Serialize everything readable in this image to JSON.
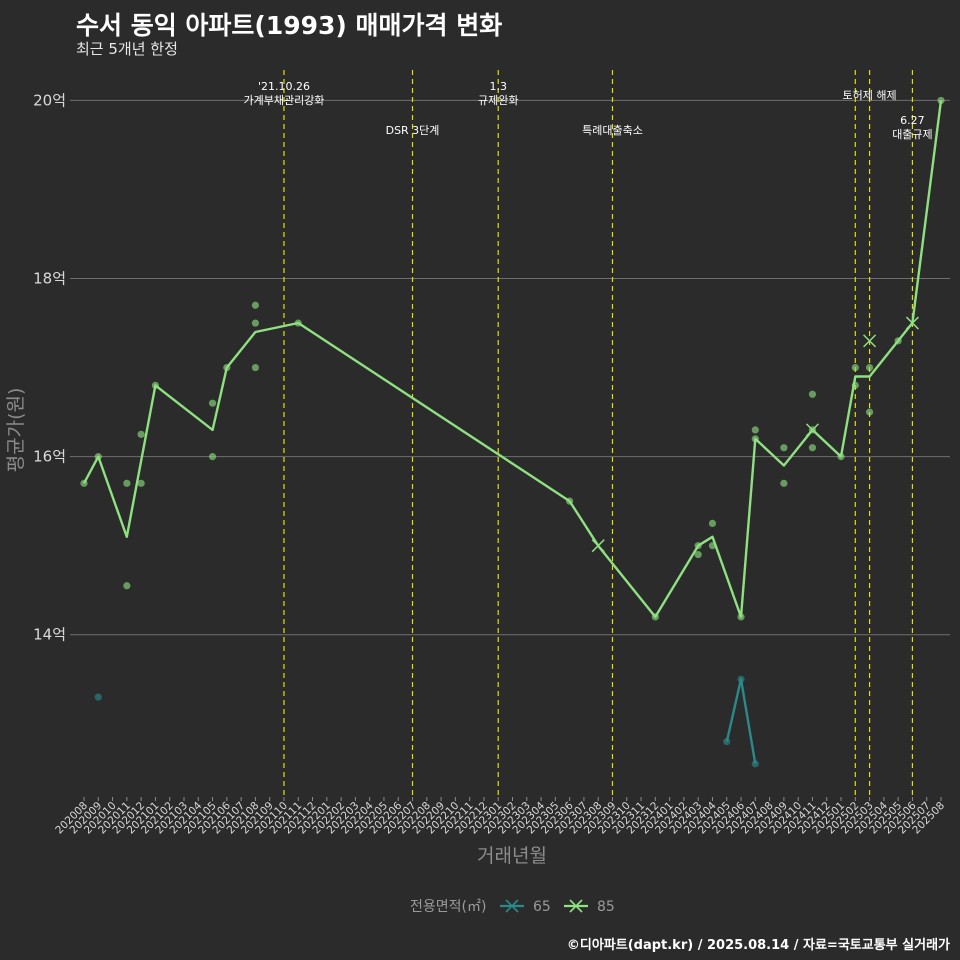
{
  "title": "수서 동익 아파트(1993) 매매가격 변화",
  "subtitle": "최근 5개년 한정",
  "caption": "©디아파트(dapt.kr) / 2025.08.14 / 자료=국토교통부 실거래가",
  "colors": {
    "s85": "#8ee080",
    "s65": "#2a8a8a",
    "event": "#e0e000",
    "grid": "#6e6e6e",
    "bg": "#2b2b2b"
  },
  "chart_data": {
    "type": "line",
    "title": "수서 동익 아파트(1993) 매매가격 변화",
    "subtitle": "최근 5개년 한정",
    "xlabel": "거래년월",
    "ylabel": "평균가(원)",
    "ylim": [
      12.2,
      20.6
    ],
    "yticks": [
      14,
      16,
      18,
      20
    ],
    "ytick_labels": [
      "14억",
      "16억",
      "18억",
      "20억"
    ],
    "x_categories": [
      "202008",
      "202009",
      "202010",
      "202011",
      "202012",
      "202101",
      "202102",
      "202103",
      "202104",
      "202105",
      "202106",
      "202107",
      "202108",
      "202109",
      "202110",
      "202111",
      "202112",
      "202201",
      "202202",
      "202203",
      "202204",
      "202205",
      "202206",
      "202207",
      "202208",
      "202209",
      "202210",
      "202211",
      "202212",
      "202301",
      "202302",
      "202303",
      "202304",
      "202305",
      "202306",
      "202307",
      "202308",
      "202309",
      "202310",
      "202311",
      "202312",
      "202401",
      "202402",
      "202403",
      "202404",
      "202405",
      "202406",
      "202407",
      "202408",
      "202409",
      "202410",
      "202411",
      "202412",
      "202501",
      "202502",
      "202503",
      "202504",
      "202505",
      "202506",
      "202507",
      "202508"
    ],
    "legend_title": "전용면적(㎡)",
    "legend_position": "bottom",
    "series": [
      {
        "name": "85",
        "line": [
          [
            "202008",
            15.7
          ],
          [
            "202009",
            16.0
          ],
          [
            "202011",
            15.1
          ],
          [
            "202101",
            16.8
          ],
          [
            "202105",
            16.3
          ],
          [
            "202106",
            17.0
          ],
          [
            "202108",
            17.4
          ],
          [
            "202111",
            17.5
          ],
          [
            "202306",
            15.5
          ],
          [
            "202308",
            15.0
          ],
          [
            "202312",
            14.2
          ],
          [
            "202403",
            15.0
          ],
          [
            "202404",
            15.1
          ],
          [
            "202406",
            14.2
          ],
          [
            "202407",
            16.2
          ],
          [
            "202409",
            15.9
          ],
          [
            "202411",
            16.3
          ],
          [
            "202501",
            16.0
          ],
          [
            "202502",
            16.9
          ],
          [
            "202503",
            16.9
          ],
          [
            "202505",
            17.3
          ],
          [
            "202506",
            17.5
          ],
          [
            "202508",
            20.0
          ]
        ],
        "points": [
          [
            "202008",
            15.7
          ],
          [
            "202009",
            16.0
          ],
          [
            "202011",
            15.7
          ],
          [
            "202011",
            14.55
          ],
          [
            "202012",
            16.25
          ],
          [
            "202012",
            15.7
          ],
          [
            "202101",
            16.8
          ],
          [
            "202105",
            16.6
          ],
          [
            "202105",
            16.0
          ],
          [
            "202106",
            17.0
          ],
          [
            "202108",
            17.7
          ],
          [
            "202108",
            17.5
          ],
          [
            "202108",
            17.0
          ],
          [
            "202111",
            17.5
          ],
          [
            "202306",
            15.5
          ],
          [
            "202312",
            14.2
          ],
          [
            "202403",
            15.0
          ],
          [
            "202403",
            14.9
          ],
          [
            "202404",
            15.25
          ],
          [
            "202404",
            15.0
          ],
          [
            "202406",
            14.2
          ],
          [
            "202407",
            16.3
          ],
          [
            "202407",
            16.2
          ],
          [
            "202409",
            16.1
          ],
          [
            "202409",
            15.7
          ],
          [
            "202411",
            16.7
          ],
          [
            "202411",
            16.3
          ],
          [
            "202411",
            16.1
          ],
          [
            "202501",
            16.0
          ],
          [
            "202502",
            17.0
          ],
          [
            "202502",
            16.8
          ],
          [
            "202503",
            17.0
          ],
          [
            "202503",
            16.5
          ],
          [
            "202505",
            17.3
          ],
          [
            "202508",
            20.0
          ]
        ],
        "cross_marks": [
          [
            "202308",
            15.0
          ],
          [
            "202411",
            16.3
          ],
          [
            "202503",
            17.3
          ],
          [
            "202506",
            17.5
          ]
        ]
      },
      {
        "name": "65",
        "line": [
          [
            "202405",
            12.8
          ],
          [
            "202406",
            13.5
          ],
          [
            "202407",
            12.55
          ]
        ],
        "points": [
          [
            "202009",
            13.3
          ],
          [
            "202405",
            12.8
          ],
          [
            "202406",
            13.5
          ],
          [
            "202407",
            12.55
          ]
        ],
        "cross_marks": []
      }
    ],
    "events": [
      {
        "x": "202110",
        "label": "'21.10.26\n가계부채관리강화",
        "level": "high"
      },
      {
        "x": "202207",
        "label": "DSR 3단계",
        "level": "low"
      },
      {
        "x": "202301",
        "label": "1.3\n규제완화",
        "level": "high"
      },
      {
        "x": "202309",
        "label": "특례대출축소",
        "level": "low"
      },
      {
        "x": "202502",
        "label": "",
        "level": "none"
      },
      {
        "x": "202503",
        "label": "토허제 해제",
        "level": "mid"
      },
      {
        "x": "202506",
        "label": "6.27\n대출규제",
        "level": "lowmid"
      }
    ]
  }
}
